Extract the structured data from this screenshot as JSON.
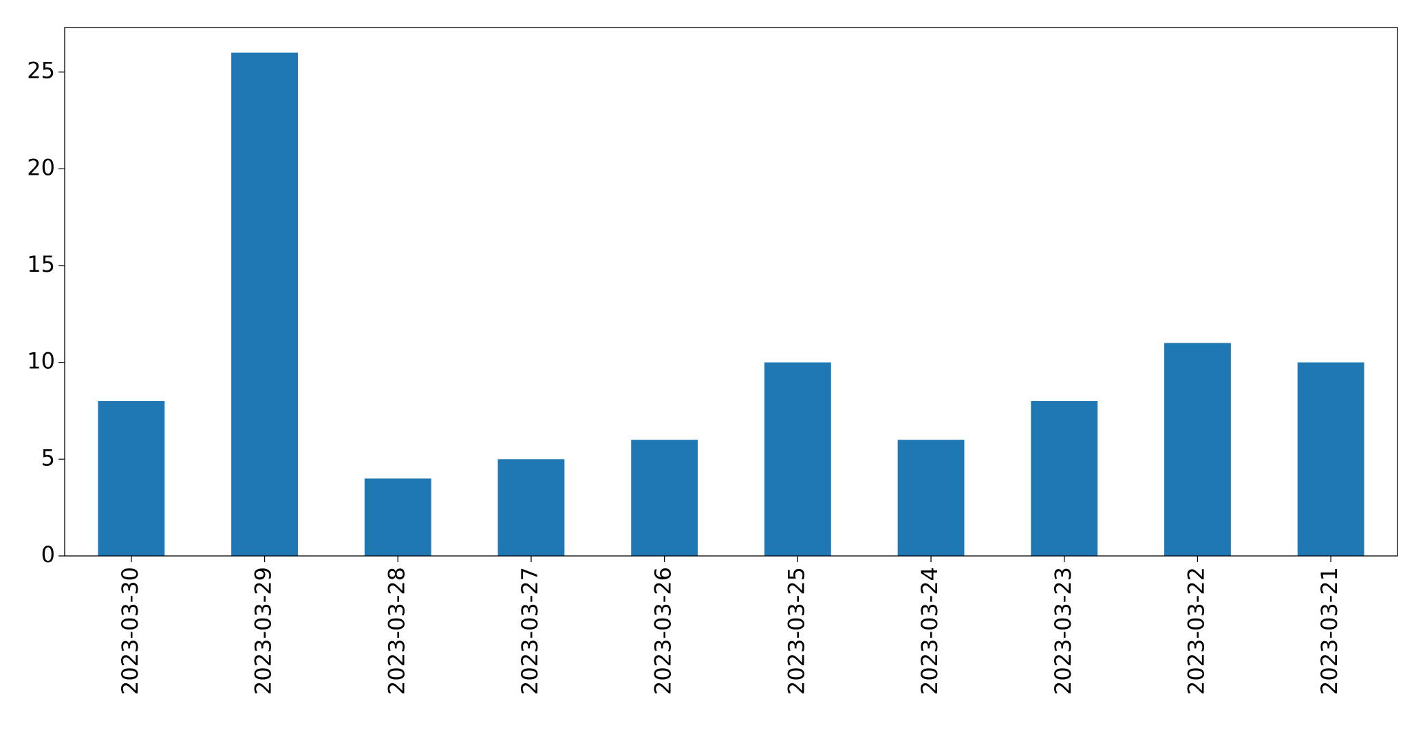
{
  "chart_data": {
    "type": "bar",
    "categories": [
      "2023-03-30",
      "2023-03-29",
      "2023-03-28",
      "2023-03-27",
      "2023-03-26",
      "2023-03-25",
      "2023-03-24",
      "2023-03-23",
      "2023-03-22",
      "2023-03-21"
    ],
    "values": [
      8,
      26,
      4,
      5,
      6,
      10,
      6,
      8,
      11,
      10
    ],
    "color": "#1f77b4",
    "ylim": [
      0,
      27.3
    ],
    "yticks": [
      0,
      5,
      10,
      15,
      20,
      25
    ],
    "grid": false
  }
}
